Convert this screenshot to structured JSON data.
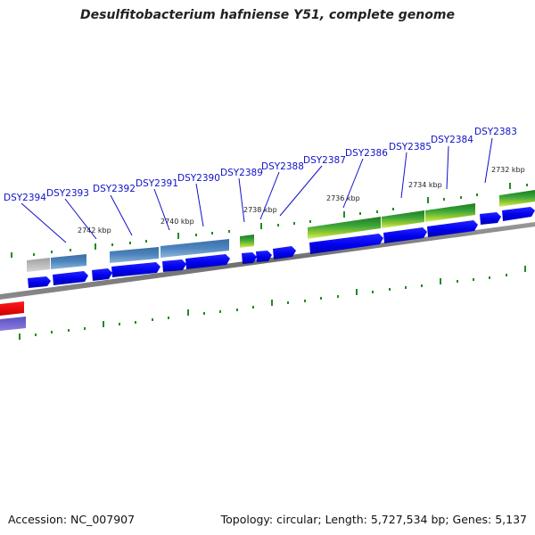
{
  "title": "Desulfitobacterium hafniense Y51, complete genome",
  "footer": {
    "accession": "Accession: NC_007907",
    "summary": "Topology: circular; Length: 5,727,534 bp; Genes: 5,137"
  },
  "genes": [
    {
      "label": "DSY2394"
    },
    {
      "label": "DSY2393"
    },
    {
      "label": "DSY2392"
    },
    {
      "label": "DSY2391"
    },
    {
      "label": "DSY2390"
    },
    {
      "label": "DSY2389"
    },
    {
      "label": "DSY2388"
    },
    {
      "label": "DSY2387"
    },
    {
      "label": "DSY2386"
    },
    {
      "label": "DSY2385"
    },
    {
      "label": "DSY2384"
    },
    {
      "label": "DSY2383"
    }
  ],
  "scale_marks": [
    {
      "label": "2742 kbp"
    },
    {
      "label": "2740 kbp"
    },
    {
      "label": "2738 kbp"
    },
    {
      "label": "2736 kbp"
    },
    {
      "label": "2734 kbp"
    },
    {
      "label": "2732 kbp"
    }
  ],
  "colors": {
    "cds": "#0000ee",
    "backbone": "#808080",
    "tick": "#228b22",
    "steelblue_feature": "#4a7fb5",
    "green_feature": "#2e8b2e",
    "gray_feature": "#b0b0b0",
    "red_feature": "#ee0000",
    "purple_feature": "#6a5acd"
  }
}
